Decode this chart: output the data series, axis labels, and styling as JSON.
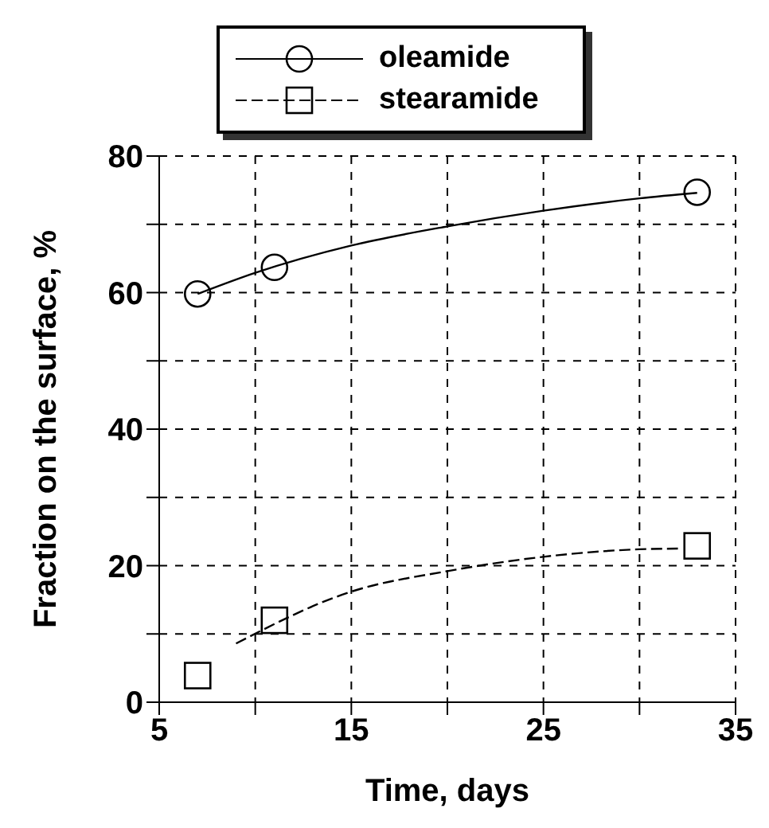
{
  "chart_data": {
    "type": "scatter",
    "xlabel": "Time, days",
    "ylabel": "Fraction on the surface, %",
    "xlim": [
      5,
      35
    ],
    "xticks": [
      5,
      {
        "value": 10,
        "label": null
      },
      15,
      {
        "value": 20,
        "label": null
      },
      25,
      {
        "value": 30,
        "label": null
      },
      35
    ],
    "ylim": [
      0,
      80
    ],
    "yticks": [
      0,
      {
        "value": 10,
        "label": null
      },
      20,
      {
        "value": 30,
        "label": null
      },
      40,
      {
        "value": 50,
        "label": null
      },
      60,
      {
        "value": 70,
        "label": null
      },
      80
    ],
    "grid": true,
    "legend": "top",
    "series": [
      {
        "name": "oleamide",
        "color": "#000000",
        "marker": "circle",
        "line_style": "solid",
        "x": [
          7,
          11,
          33
        ],
        "values": [
          59.8,
          63.7,
          74.7
        ]
      },
      {
        "name": "stearamide",
        "color": "#000000",
        "marker": "square",
        "line_style": "dashed",
        "x": [
          7,
          11,
          33
        ],
        "values": [
          3.9,
          12.0,
          22.9
        ]
      },
      {
        "type": "line",
        "color": "#000000",
        "line_style": "solid",
        "marker": "none",
        "x": [
          7,
          10,
          15,
          20,
          25,
          30,
          33
        ],
        "values": [
          59.8,
          62.9,
          66.9,
          69.7,
          72.0,
          73.8,
          74.6
        ]
      },
      {
        "type": "line",
        "color": "#000000",
        "line_style": "dashed",
        "marker": "none",
        "x": [
          9,
          15,
          20,
          25,
          30,
          32
        ],
        "values": [
          8.6,
          16.2,
          19.2,
          21.3,
          22.4,
          22.5
        ]
      }
    ]
  }
}
